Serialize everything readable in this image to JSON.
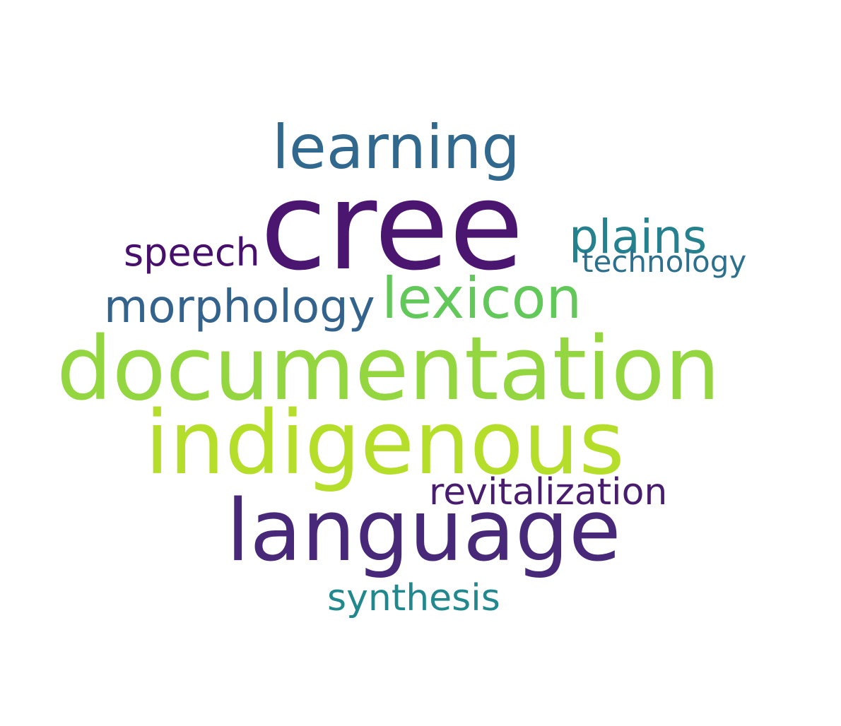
{
  "words": [
    {
      "text": "cree",
      "color": "#4a1670"
    },
    {
      "text": "documentation",
      "color": "#93d63f"
    },
    {
      "text": "indigenous",
      "color": "#b5de2b"
    },
    {
      "text": "language",
      "color": "#482878"
    },
    {
      "text": "learning",
      "color": "#31688e"
    },
    {
      "text": "lexicon",
      "color": "#63c85a"
    },
    {
      "text": "morphology",
      "color": "#33638d"
    },
    {
      "text": "plains",
      "color": "#26818e"
    },
    {
      "text": "speech",
      "color": "#46106c"
    },
    {
      "text": "technology",
      "color": "#2d708e"
    },
    {
      "text": "revitalization",
      "color": "#481c6e"
    },
    {
      "text": "synthesis",
      "color": "#21898d"
    }
  ]
}
